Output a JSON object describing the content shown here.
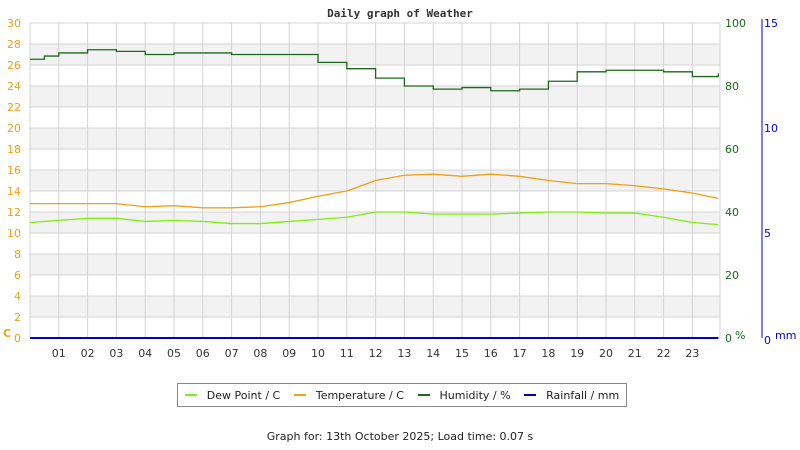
{
  "chart_data": {
    "type": "line",
    "title": "Daily graph of Weather",
    "xlabel": "",
    "x_ticks": [
      "01",
      "02",
      "03",
      "04",
      "05",
      "06",
      "07",
      "08",
      "09",
      "10",
      "11",
      "12",
      "13",
      "14",
      "15",
      "16",
      "17",
      "18",
      "19",
      "20",
      "21",
      "22",
      "23"
    ],
    "x": [
      0,
      0.5,
      1,
      2,
      3,
      4,
      5,
      6,
      7,
      8,
      9,
      10,
      11,
      12,
      13,
      14,
      15,
      16,
      17,
      18,
      19,
      20,
      21,
      22,
      23,
      23.9
    ],
    "axes": {
      "left": {
        "label": "C",
        "range": [
          0,
          30
        ],
        "ticks": [
          0,
          2,
          4,
          6,
          8,
          10,
          12,
          14,
          16,
          18,
          20,
          22,
          24,
          26,
          28,
          30
        ],
        "color": "#f0a010"
      },
      "right_humidity": {
        "label": "%",
        "range": [
          0,
          100
        ],
        "ticks": [
          0,
          20,
          40,
          60,
          80,
          100
        ],
        "color": "#1a6a1a"
      },
      "right_rain": {
        "label": "mm",
        "range": [
          0,
          15
        ],
        "ticks": [
          0,
          5,
          10,
          15
        ],
        "color": "#0000cc"
      }
    },
    "series": [
      {
        "name": "Dew Point / C",
        "axis": "left",
        "color": "#80ee10",
        "values": [
          11.0,
          11.1,
          11.2,
          11.4,
          11.4,
          11.1,
          11.2,
          11.1,
          10.9,
          10.9,
          11.1,
          11.3,
          11.5,
          12.0,
          12.0,
          11.8,
          11.8,
          11.8,
          11.9,
          12.0,
          12.0,
          11.9,
          11.9,
          11.5,
          11.0,
          10.8
        ]
      },
      {
        "name": "Temperature / C",
        "axis": "left",
        "color": "#f0a010",
        "values": [
          12.8,
          12.8,
          12.8,
          12.8,
          12.8,
          12.5,
          12.6,
          12.4,
          12.4,
          12.5,
          12.9,
          13.5,
          14.0,
          15.0,
          15.5,
          15.6,
          15.4,
          15.6,
          15.4,
          15.0,
          14.7,
          14.7,
          14.5,
          14.2,
          13.8,
          13.3
        ]
      },
      {
        "name": "Humidity / %",
        "axis": "right_humidity",
        "color": "#1a6a1a",
        "values": [
          88.5,
          89.5,
          90.5,
          91.5,
          91.0,
          90.0,
          90.5,
          90.5,
          90.0,
          90.0,
          90.0,
          87.5,
          85.5,
          82.5,
          80.0,
          79.0,
          79.5,
          78.5,
          79.0,
          81.5,
          84.5,
          85.0,
          85.0,
          84.5,
          83.0,
          84.0
        ]
      },
      {
        "name": "Rainfall / mm",
        "axis": "right_rain",
        "color": "#0000cc",
        "values": [
          0,
          0,
          0,
          0,
          0,
          0,
          0,
          0,
          0,
          0,
          0,
          0,
          0,
          0,
          0,
          0,
          0,
          0,
          0,
          0,
          0,
          0,
          0,
          0,
          0,
          0
        ]
      }
    ],
    "legend_position": "bottom",
    "grid": true
  },
  "legend": [
    {
      "label": "Dew Point / C",
      "color": "#80ee10"
    },
    {
      "label": "Temperature / C",
      "color": "#f0a010"
    },
    {
      "label": "Humidity / %",
      "color": "#1a6a1a"
    },
    {
      "label": "Rainfall / mm",
      "color": "#0000cc"
    }
  ],
  "axis_unit_labels": {
    "left": "C",
    "humidity": "%",
    "rain": "mm"
  },
  "footer": "Graph for: 13th October 2025; Load time: 0.07 s"
}
